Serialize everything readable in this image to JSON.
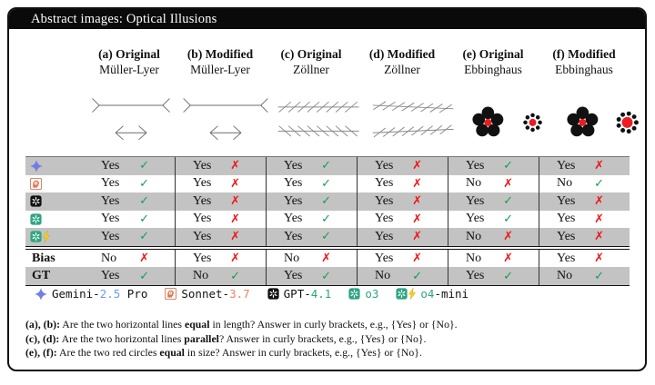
{
  "title": "Abstract images: Optical Illusions",
  "colors": {
    "check": "#0ea24d",
    "cross": "#f21414",
    "row_band": "#c3c3c3",
    "red_circle": "#ec1c24",
    "gemini_blue": "#6f9bf5",
    "sonnet_orange": "#ee8168",
    "openai_teal": "#2ea583"
  },
  "marks": {
    "check": "✓",
    "cross": "✗"
  },
  "columns": [
    {
      "top": "(a) Original",
      "sub": "Müller-Lyer"
    },
    {
      "top": "(b) Modified",
      "sub": "Müller-Lyer"
    },
    {
      "top": "(c) Original",
      "sub": "Zöllner"
    },
    {
      "top": "(d) Modified",
      "sub": "Zöllner"
    },
    {
      "top": "(e) Original",
      "sub": "Ebbinghaus"
    },
    {
      "top": "(f) Modified",
      "sub": "Ebbinghaus"
    }
  ],
  "models": [
    {
      "name": "Gemini-2.5 Pro",
      "icon": "gemini",
      "answers": [
        {
          "text": "Yes",
          "mark": "check"
        },
        {
          "text": "Yes",
          "mark": "cross"
        },
        {
          "text": "Yes",
          "mark": "check"
        },
        {
          "text": "Yes",
          "mark": "cross"
        },
        {
          "text": "Yes",
          "mark": "check"
        },
        {
          "text": "Yes",
          "mark": "cross"
        }
      ]
    },
    {
      "name": "Sonnet-3.7",
      "icon": "sonnet",
      "answers": [
        {
          "text": "Yes",
          "mark": "check"
        },
        {
          "text": "Yes",
          "mark": "cross"
        },
        {
          "text": "Yes",
          "mark": "check"
        },
        {
          "text": "Yes",
          "mark": "cross"
        },
        {
          "text": "No",
          "mark": "cross"
        },
        {
          "text": "No",
          "mark": "check"
        }
      ]
    },
    {
      "name": "GPT-4.1",
      "icon": "gpt",
      "answers": [
        {
          "text": "Yes",
          "mark": "check"
        },
        {
          "text": "Yes",
          "mark": "cross"
        },
        {
          "text": "Yes",
          "mark": "check"
        },
        {
          "text": "Yes",
          "mark": "cross"
        },
        {
          "text": "Yes",
          "mark": "check"
        },
        {
          "text": "Yes",
          "mark": "cross"
        }
      ]
    },
    {
      "name": "o3",
      "icon": "o3",
      "answers": [
        {
          "text": "Yes",
          "mark": "check"
        },
        {
          "text": "Yes",
          "mark": "cross"
        },
        {
          "text": "Yes",
          "mark": "check"
        },
        {
          "text": "Yes",
          "mark": "cross"
        },
        {
          "text": "Yes",
          "mark": "check"
        },
        {
          "text": "Yes",
          "mark": "cross"
        }
      ]
    },
    {
      "name": "o4-mini",
      "icon": "o4mini",
      "answers": [
        {
          "text": "Yes",
          "mark": "check"
        },
        {
          "text": "Yes",
          "mark": "cross"
        },
        {
          "text": "Yes",
          "mark": "check"
        },
        {
          "text": "Yes",
          "mark": "cross"
        },
        {
          "text": "No",
          "mark": "cross"
        },
        {
          "text": "Yes",
          "mark": "cross"
        }
      ]
    }
  ],
  "bias_row": {
    "label": "Bias",
    "answers": [
      {
        "text": "No",
        "mark": "cross"
      },
      {
        "text": "Yes",
        "mark": "cross"
      },
      {
        "text": "No",
        "mark": "cross"
      },
      {
        "text": "Yes",
        "mark": "cross"
      },
      {
        "text": "No",
        "mark": "cross"
      },
      {
        "text": "Yes",
        "mark": "cross"
      }
    ]
  },
  "gt_row": {
    "label": "GT",
    "answers": [
      {
        "text": "Yes",
        "mark": "check"
      },
      {
        "text": "No",
        "mark": "check"
      },
      {
        "text": "Yes",
        "mark": "check"
      },
      {
        "text": "No",
        "mark": "check"
      },
      {
        "text": "Yes",
        "mark": "check"
      },
      {
        "text": "No",
        "mark": "check"
      }
    ]
  },
  "legend": [
    {
      "icon": "gemini",
      "segments": [
        {
          "t": "Gemini-"
        },
        {
          "t": "2.5",
          "color": "#6f9bf5"
        },
        {
          "t": " Pro"
        }
      ]
    },
    {
      "icon": "sonnet",
      "segments": [
        {
          "t": "Sonnet-"
        },
        {
          "t": "3.7",
          "color": "#ee8168"
        }
      ]
    },
    {
      "icon": "gpt",
      "segments": [
        {
          "t": "GPT-"
        },
        {
          "t": "4.1",
          "color": "#2ea583"
        }
      ]
    },
    {
      "icon": "o3",
      "segments": [
        {
          "t": "o3",
          "color": "#2ea583"
        }
      ]
    },
    {
      "icon": "o4mini",
      "segments": [
        {
          "t": "o4",
          "color": "#2ea583"
        },
        {
          "t": "-mini"
        }
      ]
    }
  ],
  "footer": [
    {
      "segments": [
        {
          "t": "(a), (b):",
          "bold": true
        },
        {
          "t": " Are the two horizontal lines "
        },
        {
          "t": "equal",
          "bold": true
        },
        {
          "t": " in length? Answer in curly brackets, e.g., {Yes} or {No}."
        }
      ]
    },
    {
      "segments": [
        {
          "t": "(c), (d):",
          "bold": true
        },
        {
          "t": " Are the two horizontal lines "
        },
        {
          "t": "parallel",
          "bold": true
        },
        {
          "t": "? Answer in curly brackets, e.g., {Yes} or {No}."
        }
      ]
    },
    {
      "segments": [
        {
          "t": "(e), (f):",
          "bold": true
        },
        {
          "t": " Are the two red circles "
        },
        {
          "t": "equal",
          "bold": true
        },
        {
          "t": " in size? Answer in curly brackets, e.g., {Yes} or {No}."
        }
      ]
    }
  ]
}
